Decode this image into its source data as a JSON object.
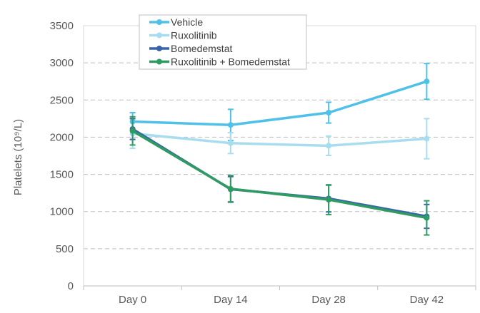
{
  "chart_data": {
    "type": "line",
    "title": "",
    "xlabel": "",
    "ylabel": "Platelets (10⁹/L)",
    "ylim": [
      0,
      3500
    ],
    "yticks": [
      0,
      500,
      1000,
      1500,
      2000,
      2500,
      3000,
      3500
    ],
    "grid": "horizontal dashed",
    "legend_position": "top-left",
    "categories": [
      "Day 0",
      "Day 14",
      "Day 28",
      "Day 42"
    ],
    "series": [
      {
        "name": "Vehicle",
        "color": "#4FC0E8",
        "values": [
          2210,
          2165,
          2330,
          2750
        ],
        "errors": [
          120,
          210,
          140,
          240
        ]
      },
      {
        "name": "Ruxolitinib",
        "color": "#A8DDF0",
        "values": [
          2050,
          1920,
          1885,
          1980
        ],
        "errors": [
          200,
          140,
          130,
          270
        ]
      },
      {
        "name": "Bomedemstat",
        "color": "#3A63A8",
        "values": [
          2110,
          1300,
          1175,
          935
        ],
        "errors": [
          140,
          170,
          180,
          160
        ]
      },
      {
        "name": "Ruxolitinib + Bomedemstat",
        "color": "#2E9B62",
        "values": [
          2085,
          1305,
          1160,
          915
        ],
        "errors": [
          190,
          180,
          200,
          230
        ]
      }
    ]
  }
}
